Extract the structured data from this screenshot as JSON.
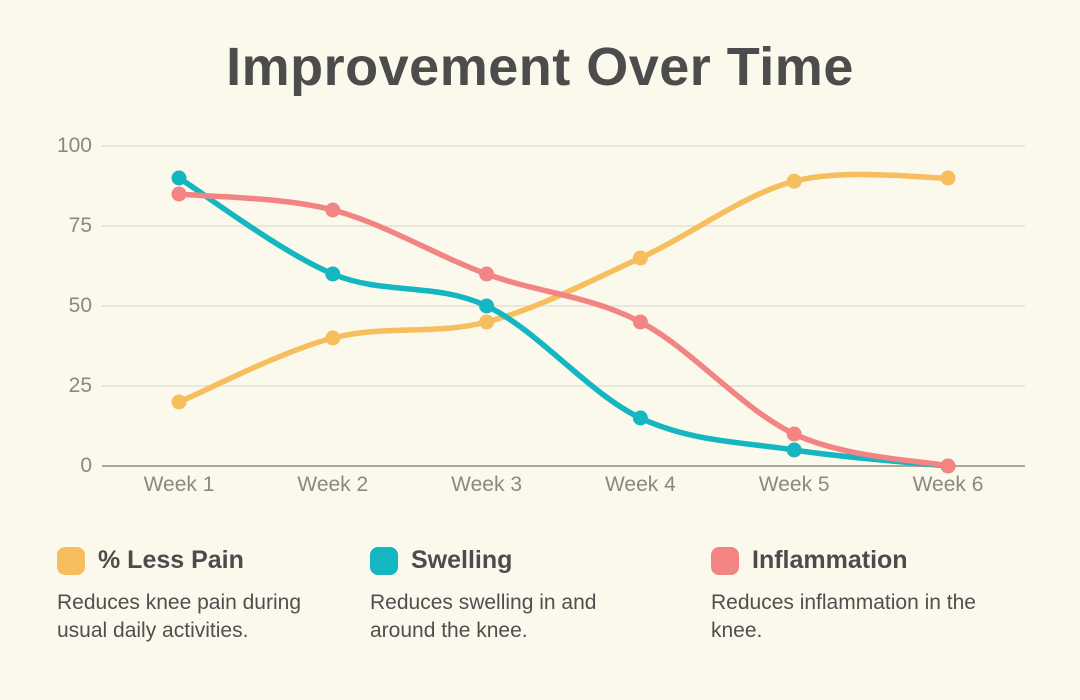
{
  "title": "Improvement Over Time",
  "colors": {
    "background": "#FAF9EC",
    "pain": "#F6BE5C",
    "swelling": "#13B6C1",
    "inflammation": "#F28484",
    "title_text": "#4C4C4C",
    "axis_text": "#8A897F",
    "gridline": "#E2E1D6",
    "axis_line": "#A9A89E"
  },
  "chart_data": {
    "type": "line",
    "title": "Improvement Over Time",
    "categories": [
      "Week 1",
      "Week 2",
      "Week 3",
      "Week 4",
      "Week 5",
      "Week 6"
    ],
    "series": [
      {
        "name": "% Less Pain",
        "color_key": "pain",
        "values": [
          20,
          40,
          45,
          65,
          89,
          90
        ]
      },
      {
        "name": "Swelling",
        "color_key": "swelling",
        "values": [
          90,
          60,
          50,
          15,
          5,
          0
        ]
      },
      {
        "name": "Inflammation",
        "color_key": "inflammation",
        "values": [
          85,
          80,
          60,
          45,
          10,
          0
        ]
      }
    ],
    "xlabel": "",
    "ylabel": "",
    "ylim": [
      0,
      100
    ],
    "yticks": [
      0,
      25,
      50,
      75,
      100
    ],
    "grid": "horizontal",
    "smooth": true,
    "legend_position": "bottom"
  },
  "legend": {
    "items": [
      {
        "label": "% Less Pain",
        "description": "Reduces knee pain during usual daily activities.",
        "color_key": "pain"
      },
      {
        "label": "Swelling",
        "description": "Reduces swelling in and around the knee.",
        "color_key": "swelling"
      },
      {
        "label": "Inflammation",
        "description": "Reduces inflammation in the knee.",
        "color_key": "inflammation"
      }
    ]
  }
}
